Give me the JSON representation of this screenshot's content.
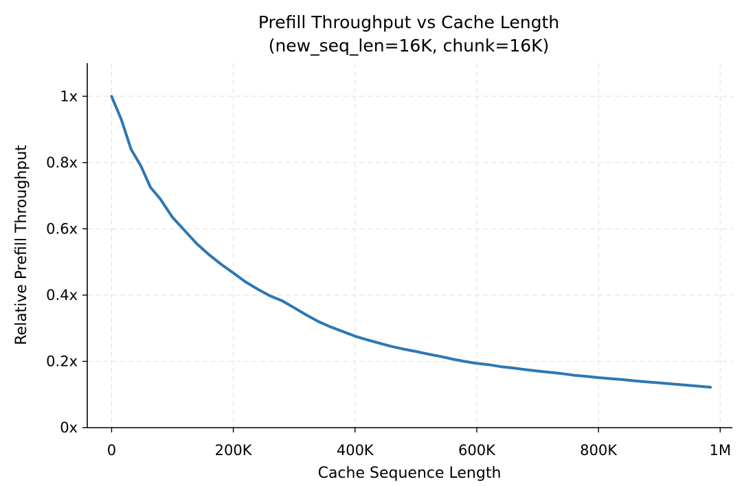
{
  "chart_data": {
    "type": "line",
    "title": "Prefill Throughput vs Cache Length",
    "subtitle": "(new_seq_len=16K, chunk=16K)",
    "xlabel": "Cache Sequence Length",
    "ylabel": "Relative Prefill Throughput",
    "xlim": [
      -40000,
      1020000
    ],
    "ylim": [
      0,
      1.1
    ],
    "grid": true,
    "x_ticks": [
      0,
      200000,
      400000,
      600000,
      800000,
      1000000
    ],
    "x_tick_labels": [
      "0",
      "200K",
      "400K",
      "600K",
      "800K",
      "1M"
    ],
    "y_ticks": [
      0,
      0.2,
      0.4,
      0.6,
      0.8,
      1.0
    ],
    "y_tick_labels": [
      "0x",
      "0.2x",
      "0.4x",
      "0.6x",
      "0.8x",
      "1x"
    ],
    "line_color": "#2c77b4",
    "series": [
      {
        "x": [
          0,
          16000,
          32000,
          48000,
          64000,
          80000,
          100000,
          120000,
          140000,
          160000,
          180000,
          200000,
          220000,
          240000,
          260000,
          280000,
          300000,
          320000,
          340000,
          360000,
          380000,
          400000,
          420000,
          440000,
          460000,
          480000,
          500000,
          520000,
          540000,
          560000,
          580000,
          600000,
          620000,
          640000,
          660000,
          680000,
          700000,
          720000,
          740000,
          760000,
          780000,
          800000,
          820000,
          840000,
          860000,
          880000,
          900000,
          920000,
          940000,
          960000,
          984000
        ],
        "y": [
          1.0,
          0.93,
          0.84,
          0.79,
          0.725,
          0.69,
          0.635,
          0.595,
          0.555,
          0.522,
          0.493,
          0.467,
          0.44,
          0.418,
          0.398,
          0.383,
          0.362,
          0.34,
          0.32,
          0.304,
          0.29,
          0.276,
          0.265,
          0.255,
          0.245,
          0.237,
          0.23,
          0.222,
          0.215,
          0.207,
          0.2,
          0.194,
          0.19,
          0.184,
          0.18,
          0.175,
          0.171,
          0.167,
          0.163,
          0.158,
          0.155,
          0.151,
          0.148,
          0.145,
          0.141,
          0.138,
          0.135,
          0.132,
          0.129,
          0.126,
          0.122
        ]
      }
    ]
  }
}
